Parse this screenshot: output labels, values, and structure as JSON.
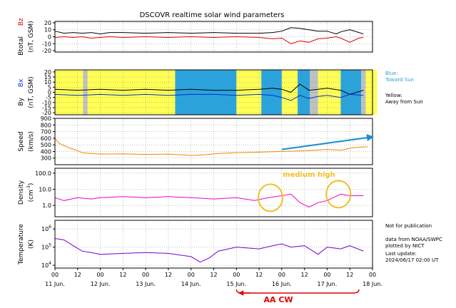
{
  "chart_data": [
    {
      "type": "line",
      "title": "DSCOVR realtime solar wind parameters",
      "panel": "magnetic-field-total",
      "ylabel_parts": [
        "Btotal",
        "Bz",
        "(nT, GSM)"
      ],
      "yticks": [
        20,
        10,
        0,
        -10,
        -20
      ],
      "ylim": [
        -22,
        22
      ],
      "series": [
        {
          "name": "Btotal",
          "color": "#000000",
          "x": [
            0,
            0.2,
            0.4,
            0.6,
            0.8,
            1.0,
            1.2,
            1.5,
            2.0,
            2.5,
            3.0,
            3.5,
            4.0,
            4.5,
            4.8,
            5.0,
            5.2,
            5.4,
            5.6,
            5.8,
            6.0,
            6.2,
            6.3,
            6.5,
            6.7,
            6.8
          ],
          "values": [
            8,
            5,
            6,
            5,
            6,
            4,
            6,
            6,
            5,
            6,
            5,
            6,
            5,
            5,
            6,
            8,
            13,
            12,
            10,
            8,
            8,
            4,
            7,
            10,
            6,
            4
          ]
        },
        {
          "name": "Bz",
          "color": "#e00000",
          "x": [
            0,
            0.2,
            0.4,
            0.6,
            0.8,
            1.0,
            1.2,
            1.5,
            2.0,
            2.5,
            3.0,
            3.5,
            4.0,
            4.5,
            4.8,
            5.0,
            5.2,
            5.4,
            5.6,
            5.8,
            6.0,
            6.2,
            6.3,
            6.5,
            6.7,
            6.8
          ],
          "values": [
            -1,
            0,
            -1,
            0,
            -2,
            -1,
            0,
            -1,
            0,
            -1,
            0,
            -1,
            0,
            -1,
            -3,
            -2,
            -10,
            -6,
            -8,
            -3,
            -2,
            0,
            -2,
            -8,
            -2,
            -1
          ]
        }
      ]
    },
    {
      "type": "line",
      "panel": "magnetic-field-components",
      "ylabel_parts": [
        "By",
        "Bx",
        "(nT, GSM)"
      ],
      "yticks": [
        20,
        15,
        10,
        5,
        0,
        -5,
        -10,
        -15,
        -20
      ],
      "ylim": [
        -22,
        22
      ],
      "legend_notes": [
        "Blue:",
        "Toward Sun",
        "Yellow:",
        "Away from Sun"
      ],
      "sector_colors": {
        "toward": "#29a3dd",
        "away": "#ffff55",
        "gap": "#c0c0c0"
      },
      "sectors": [
        {
          "from": 0,
          "to": 0.62,
          "polarity": "away"
        },
        {
          "from": 0.62,
          "to": 0.72,
          "polarity": "gap"
        },
        {
          "from": 0.72,
          "to": 2.65,
          "polarity": "away"
        },
        {
          "from": 2.65,
          "to": 4.0,
          "polarity": "toward"
        },
        {
          "from": 4.0,
          "to": 4.55,
          "polarity": "away"
        },
        {
          "from": 4.55,
          "to": 5.0,
          "polarity": "toward"
        },
        {
          "from": 5.0,
          "to": 5.35,
          "polarity": "away"
        },
        {
          "from": 5.35,
          "to": 5.62,
          "polarity": "toward"
        },
        {
          "from": 5.62,
          "to": 5.8,
          "polarity": "gap"
        },
        {
          "from": 5.8,
          "to": 6.3,
          "polarity": "away"
        },
        {
          "from": 6.3,
          "to": 6.75,
          "polarity": "toward"
        },
        {
          "from": 6.75,
          "to": 6.85,
          "polarity": "gap"
        },
        {
          "from": 6.85,
          "to": 7.1,
          "polarity": "away"
        }
      ],
      "series": [
        {
          "name": "By",
          "color": "#000000",
          "x": [
            0,
            0.5,
            1.0,
            1.5,
            2.0,
            2.5,
            3.0,
            3.5,
            4.0,
            4.5,
            4.8,
            5.0,
            5.2,
            5.4,
            5.6,
            5.8,
            6.0,
            6.3,
            6.5,
            6.8
          ],
          "values": [
            3,
            2,
            3,
            2,
            3,
            2,
            3,
            2,
            2,
            3,
            4,
            3,
            0,
            8,
            2,
            3,
            4,
            2,
            -2,
            2
          ]
        },
        {
          "name": "Bx",
          "color": "#0033cc",
          "x": [
            0,
            0.5,
            1.0,
            1.5,
            2.0,
            2.5,
            3.0,
            3.5,
            4.0,
            4.5,
            4.8,
            5.0,
            5.2,
            5.4,
            5.6,
            5.8,
            6.0,
            6.3,
            6.5,
            6.8
          ],
          "values": [
            -2,
            -3,
            -2,
            -3,
            -2,
            -3,
            -2,
            -2,
            -3,
            -2,
            -3,
            -5,
            -8,
            -3,
            -6,
            -4,
            -3,
            -5,
            -2,
            -3
          ]
        }
      ]
    },
    {
      "type": "line",
      "panel": "speed",
      "ylabel_parts": [
        "Speed",
        "(km/s)"
      ],
      "yticks": [
        900,
        800,
        700,
        600,
        500,
        400,
        300
      ],
      "ylim": [
        200,
        900
      ],
      "series": [
        {
          "name": "Speed",
          "color": "#ee8800",
          "x": [
            0,
            0.1,
            0.3,
            0.5,
            0.6,
            0.8,
            1.0,
            1.5,
            2.0,
            2.5,
            3.0,
            3.3,
            3.6,
            4.0,
            4.5,
            5.0,
            5.5,
            6.0,
            6.3,
            6.6,
            6.9
          ],
          "values": [
            600,
            520,
            460,
            410,
            380,
            370,
            360,
            365,
            355,
            360,
            340,
            350,
            370,
            380,
            390,
            400,
            410,
            430,
            420,
            460,
            470
          ]
        }
      ],
      "annotations": [
        {
          "kind": "arrow",
          "color": "#1a8fcf",
          "from": [
            5.0,
            430
          ],
          "to": [
            7.0,
            620
          ]
        }
      ]
    },
    {
      "type": "line",
      "panel": "density",
      "scale": "log",
      "ylabel_parts": [
        "Density",
        "(cm",
        "-3",
        ")"
      ],
      "yticks": [
        "100.0",
        "10.0",
        "1.0"
      ],
      "tick_values": [
        100,
        10,
        1
      ],
      "ylim": [
        0.2,
        200
      ],
      "series": [
        {
          "name": "Density",
          "color": "#ee00cc",
          "x": [
            0,
            0.2,
            0.5,
            0.8,
            1.0,
            1.5,
            2.0,
            2.5,
            3.0,
            3.5,
            4.0,
            4.4,
            4.7,
            5.0,
            5.2,
            5.4,
            5.6,
            5.8,
            6.0,
            6.3,
            6.5,
            6.8
          ],
          "values": [
            3,
            2,
            3,
            2.5,
            3,
            3.5,
            3,
            3.5,
            3,
            2.5,
            3,
            2,
            3,
            4,
            5,
            1.5,
            0.8,
            1.5,
            2,
            5,
            4,
            4
          ]
        }
      ],
      "annotations": [
        {
          "kind": "ellipse",
          "color": "#f0c020",
          "center": [
            4.75,
            3
          ]
        },
        {
          "kind": "ellipse",
          "color": "#f0c020",
          "center": [
            6.25,
            5
          ]
        },
        {
          "kind": "label",
          "color": "#f0c020",
          "text": "medium high",
          "at": [
            5.6,
            60
          ]
        }
      ]
    },
    {
      "type": "line",
      "panel": "temperature",
      "scale": "log",
      "ylabel_parts": [
        "Temperature",
        "(K)"
      ],
      "yticks": [
        {
          "base": "10",
          "exp": "6",
          "value": 1000000
        },
        {
          "base": "10",
          "exp": "5",
          "value": 100000
        },
        {
          "base": "10",
          "exp": "4",
          "value": 10000
        }
      ],
      "ylim": [
        7000,
        3000000
      ],
      "series": [
        {
          "name": "Temperature",
          "color": "#7700cc",
          "x": [
            0,
            0.2,
            0.4,
            0.6,
            0.8,
            1.0,
            1.5,
            2.0,
            2.5,
            3.0,
            3.2,
            3.4,
            3.6,
            4.0,
            4.5,
            4.8,
            5.0,
            5.2,
            5.5,
            5.8,
            6.0,
            6.3,
            6.5,
            6.8
          ],
          "values": [
            300000,
            250000,
            120000,
            60000,
            50000,
            40000,
            45000,
            50000,
            45000,
            30000,
            15000,
            25000,
            60000,
            100000,
            80000,
            120000,
            150000,
            100000,
            120000,
            40000,
            100000,
            80000,
            120000,
            60000
          ]
        }
      ],
      "x_ticks": [
        "00",
        "12",
        "00",
        "12",
        "00",
        "12",
        "00",
        "12",
        "00",
        "12",
        "00",
        "12",
        "00",
        "12",
        "00"
      ],
      "date_labels": [
        "11 Jun.",
        "12 Jun.",
        "13 Jun.",
        "14 Jun.",
        "15 Jun.",
        "16 Jun.",
        "17 Jun.",
        "18 Jun."
      ],
      "xlim_days": [
        0,
        7
      ]
    }
  ],
  "notes": {
    "not_for_publication": "Not for publication",
    "source_line1": "data from NOAA/SWPC",
    "source_line2": "plotted by NICT",
    "update_label": "Last update:",
    "update_time": "2024/06/17 02:00 UT"
  },
  "bottom_annotation": {
    "text": "AA CW",
    "color": "#e00000",
    "span_days": [
      4.0,
      6.7
    ]
  }
}
